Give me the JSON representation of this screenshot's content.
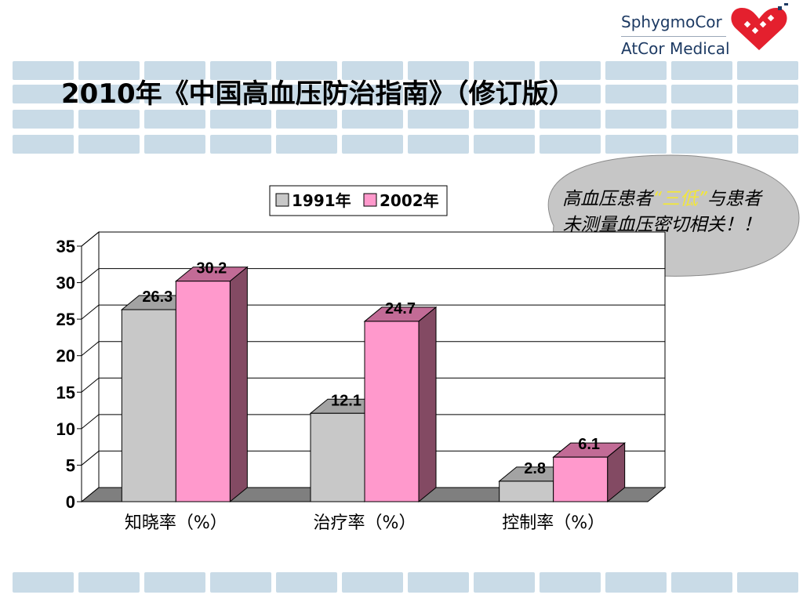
{
  "slide": {
    "title": "2010年《中国高血压防治指南》（修订版）",
    "logo": {
      "line1": "SphygmoCor",
      "line2": "AtCor Medical"
    }
  },
  "callout": {
    "part1": "高血压患者",
    "part2": "“三低",
    "part3": "”",
    "part4": "与患者未测量血压密切相关！！"
  },
  "chart_data": {
    "type": "bar",
    "categories": [
      "知晓率（%）",
      "治疗率（%）",
      "控制率（%）"
    ],
    "series": [
      {
        "name": "1991年",
        "values": [
          26.3,
          12.1,
          2.8
        ],
        "color": "#c8c8c8"
      },
      {
        "name": "2002年",
        "values": [
          30.2,
          24.7,
          6.1
        ],
        "color": "#ff99cc"
      }
    ],
    "ylim": [
      0,
      35
    ],
    "yticks": [
      "0",
      "5",
      "10",
      "15",
      "20",
      "25",
      "30",
      "35"
    ],
    "data_labels": [
      "26.3",
      "12.1",
      "2.8",
      "30.2",
      "24.7",
      "6.1"
    ],
    "grid": true,
    "legend": "top"
  }
}
